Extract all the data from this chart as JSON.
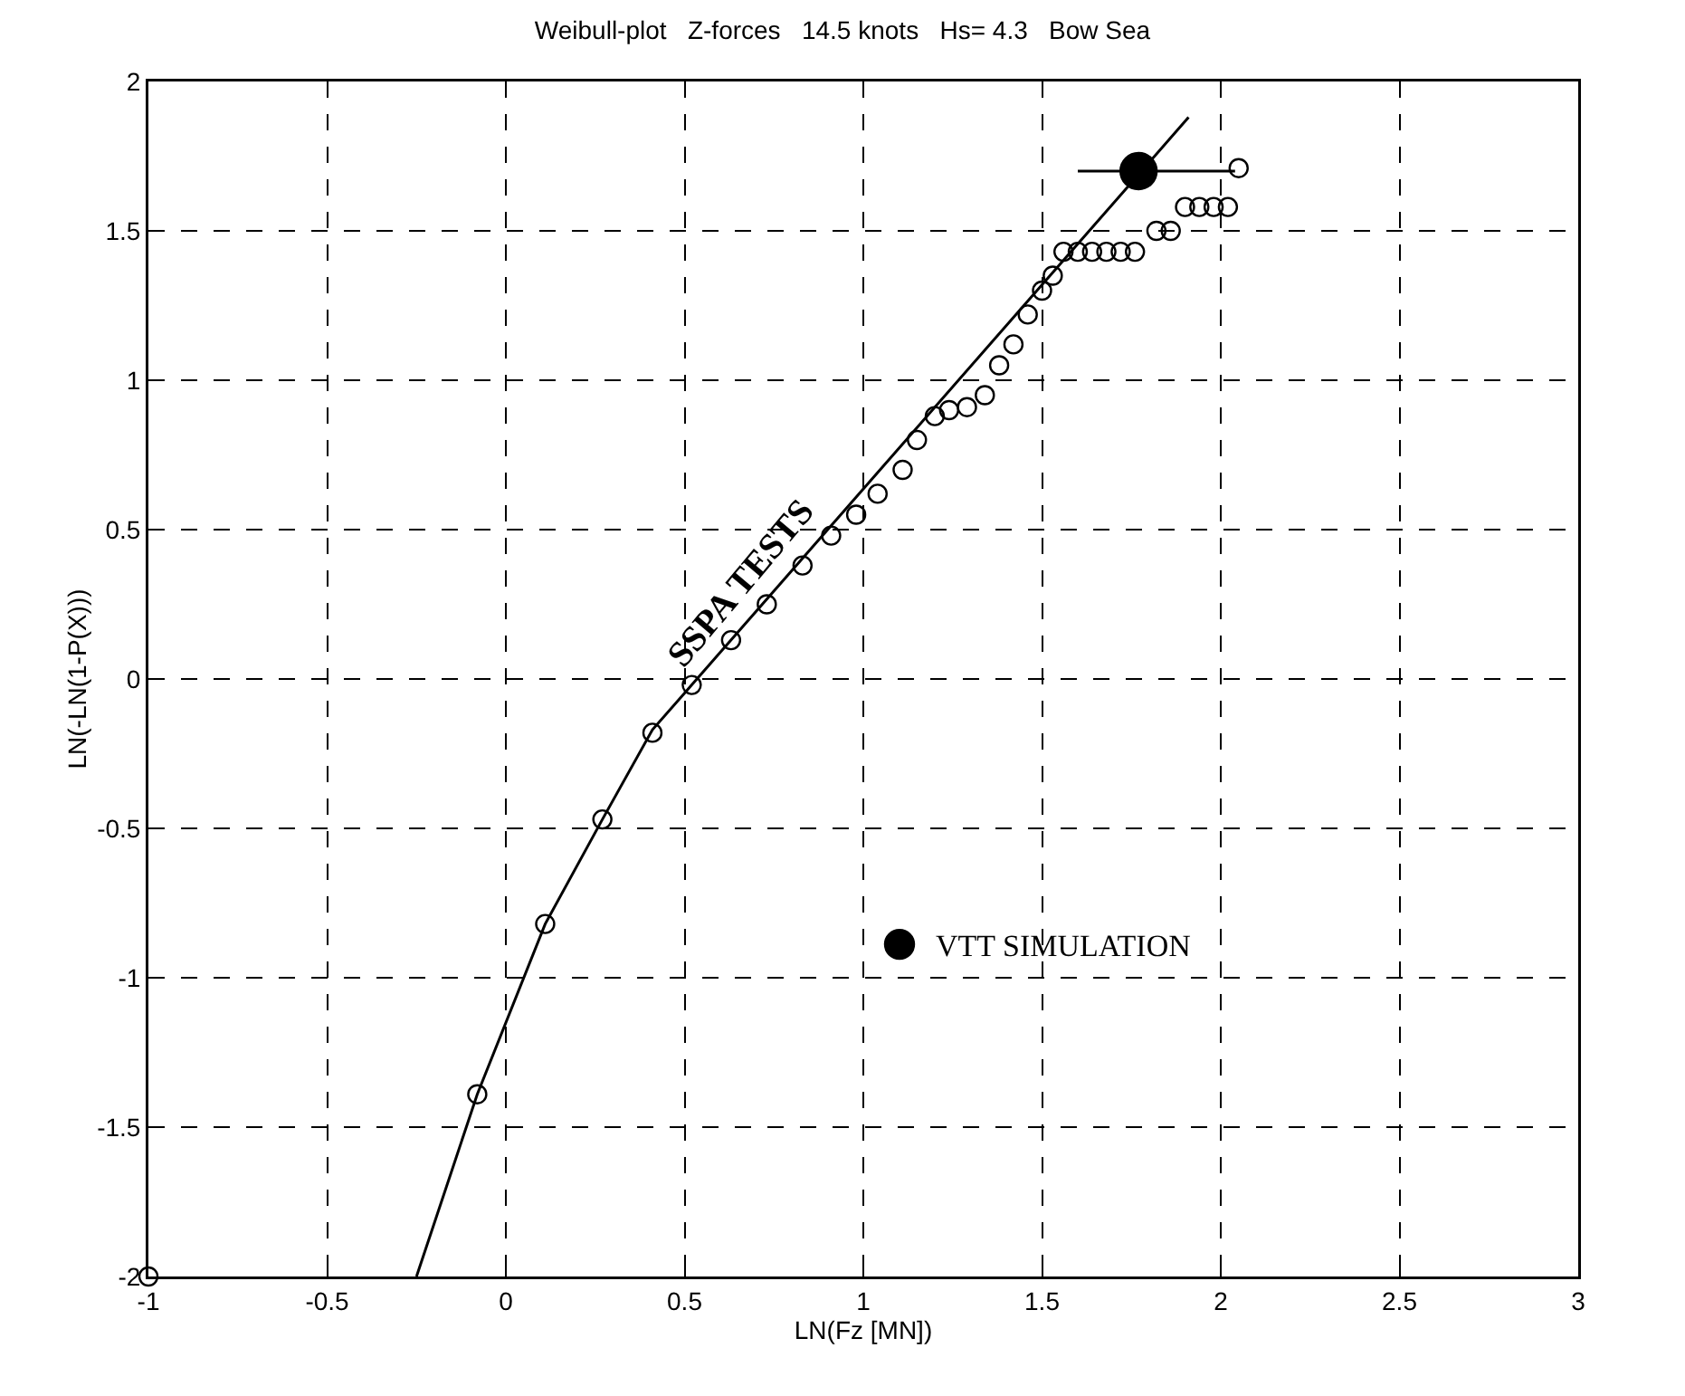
{
  "chart_data": {
    "type": "scatter",
    "title": "Weibull-plot   Z-forces   14.5 knots   Hs= 4.3   Bow Sea",
    "xlabel": "LN(Fz [MN])",
    "ylabel": "LN(-LN(1-P(X)))",
    "xlim": [
      -1,
      3
    ],
    "xticks": [
      -1,
      -0.5,
      0,
      0.5,
      1,
      1.5,
      2,
      2.5,
      3
    ],
    "ylim": [
      -2,
      2
    ],
    "yticks": [
      -2,
      -1.5,
      -1,
      -0.5,
      0,
      0.5,
      1,
      1.5,
      2
    ],
    "grid": true,
    "legend": "bottom right",
    "series": [
      {
        "name": "SSPA TESTS",
        "marker": "circle",
        "color": "#000000",
        "x": [
          -1,
          -0.08,
          0.11,
          0.27,
          0.41,
          0.52,
          0.63,
          0.73,
          0.83,
          0.91,
          0.98,
          1.04,
          1.11,
          1.15,
          1.2,
          1.24,
          1.29,
          1.34,
          1.38,
          1.42,
          1.46,
          1.5,
          1.53,
          1.56,
          1.6,
          1.64,
          1.68,
          1.72,
          1.76,
          1.82,
          1.86,
          1.9,
          1.94,
          1.98,
          2.02,
          2.05
        ],
        "values": [
          -2,
          -1.39,
          -0.82,
          -0.47,
          -0.18,
          -0.02,
          0.13,
          0.25,
          0.38,
          0.48,
          0.55,
          0.62,
          0.7,
          0.8,
          0.88,
          0.9,
          0.91,
          0.95,
          1.05,
          1.12,
          1.22,
          1.3,
          1.35,
          1.43,
          1.43,
          1.43,
          1.43,
          1.43,
          1.43,
          1.5,
          1.5,
          1.58,
          1.58,
          1.58,
          1.58,
          1.71
        ]
      },
      {
        "type": "line",
        "line_style": "solid",
        "color": "#000000",
        "x": [
          -0.25,
          -0.08,
          0.11,
          0.27,
          0.41,
          0.52,
          1.91
        ],
        "values": [
          -2,
          -1.39,
          -0.82,
          -0.47,
          -0.17,
          -0.02,
          1.88
        ]
      },
      {
        "name": "VTT SIMULATION",
        "marker": "circle",
        "color": "#000000",
        "x": [
          1.77
        ],
        "values": [
          1.7
        ],
        "xerrors": [
          [
            1.6,
            2.04
          ]
        ]
      }
    ]
  }
}
